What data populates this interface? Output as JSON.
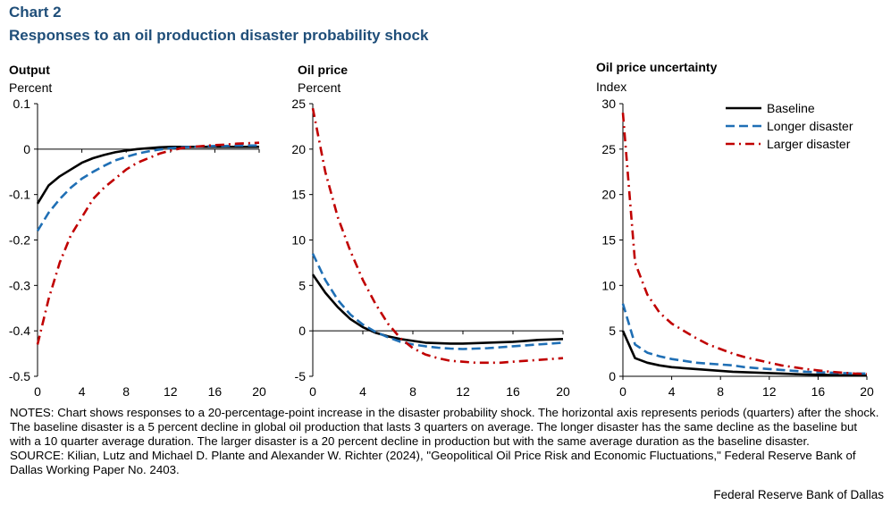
{
  "header": {
    "label": "Chart 2",
    "title": "Responses to an oil production disaster probability shock",
    "accent_color": "#1f4e79"
  },
  "chart_data": [
    {
      "type": "line",
      "title": "Output",
      "ylabel": "Percent",
      "xlabel": "",
      "xlim": [
        0,
        20
      ],
      "ylim": [
        -0.5,
        0.1
      ],
      "x_ticks": [
        0,
        4,
        8,
        12,
        16,
        20
      ],
      "y_ticks": [
        0.1,
        0,
        -0.1,
        -0.2,
        -0.3,
        -0.4,
        -0.5
      ],
      "y_tick_labels": [
        "0.1",
        "0",
        "-0.1",
        "-0.2",
        "-0.3",
        "-0.4",
        "-0.5"
      ],
      "x": [
        0,
        1,
        2,
        3,
        4,
        5,
        6,
        7,
        8,
        9,
        10,
        11,
        12,
        13,
        14,
        15,
        16,
        17,
        18,
        19,
        20
      ],
      "series": [
        {
          "name": "Baseline",
          "color": "#000000",
          "dash": "solid",
          "values": [
            -0.12,
            -0.08,
            -0.06,
            -0.045,
            -0.03,
            -0.02,
            -0.013,
            -0.007,
            -0.003,
            0.0,
            0.002,
            0.004,
            0.005,
            0.005,
            0.005,
            0.005,
            0.005,
            0.005,
            0.005,
            0.005,
            0.005
          ]
        },
        {
          "name": "Longer disaster",
          "color": "#1f6fb5",
          "dash": "dash",
          "values": [
            -0.18,
            -0.14,
            -0.11,
            -0.085,
            -0.065,
            -0.05,
            -0.037,
            -0.025,
            -0.017,
            -0.01,
            -0.005,
            -0.001,
            0.002,
            0.004,
            0.005,
            0.006,
            0.007,
            0.007,
            0.008,
            0.008,
            0.008
          ]
        },
        {
          "name": "Larger disaster",
          "color": "#c00000",
          "dash": "dashdot",
          "values": [
            -0.43,
            -0.33,
            -0.25,
            -0.19,
            -0.15,
            -0.11,
            -0.085,
            -0.065,
            -0.045,
            -0.03,
            -0.02,
            -0.01,
            -0.003,
            0.002,
            0.005,
            0.007,
            0.009,
            0.01,
            0.012,
            0.013,
            0.014
          ]
        }
      ]
    },
    {
      "type": "line",
      "title": "Oil price",
      "ylabel": "Percent",
      "xlabel": "",
      "xlim": [
        0,
        20
      ],
      "ylim": [
        -5,
        25
      ],
      "x_ticks": [
        0,
        4,
        8,
        12,
        16,
        20
      ],
      "y_ticks": [
        25,
        20,
        15,
        10,
        5,
        0,
        -5
      ],
      "y_tick_labels": [
        "25",
        "20",
        "15",
        "10",
        "5",
        "0",
        "-5"
      ],
      "x": [
        0,
        1,
        2,
        3,
        4,
        5,
        6,
        7,
        8,
        9,
        10,
        11,
        12,
        13,
        14,
        15,
        16,
        17,
        18,
        19,
        20
      ],
      "series": [
        {
          "name": "Baseline",
          "color": "#000000",
          "dash": "solid",
          "values": [
            6.2,
            4.2,
            2.6,
            1.3,
            0.4,
            -0.2,
            -0.6,
            -0.9,
            -1.1,
            -1.3,
            -1.35,
            -1.4,
            -1.4,
            -1.35,
            -1.3,
            -1.25,
            -1.2,
            -1.1,
            -1.0,
            -0.95,
            -0.9
          ]
        },
        {
          "name": "Longer disaster",
          "color": "#1f6fb5",
          "dash": "dash",
          "values": [
            8.5,
            5.6,
            3.4,
            1.8,
            0.7,
            -0.1,
            -0.7,
            -1.2,
            -1.5,
            -1.7,
            -1.85,
            -1.95,
            -2.0,
            -1.95,
            -1.9,
            -1.8,
            -1.7,
            -1.6,
            -1.5,
            -1.4,
            -1.3
          ]
        },
        {
          "name": "Larger disaster",
          "color": "#c00000",
          "dash": "dashdot",
          "values": [
            24.5,
            17.5,
            12.5,
            8.8,
            5.6,
            3.0,
            0.8,
            -0.8,
            -1.9,
            -2.6,
            -3.0,
            -3.3,
            -3.4,
            -3.5,
            -3.5,
            -3.5,
            -3.4,
            -3.3,
            -3.2,
            -3.1,
            -3.0
          ]
        }
      ]
    },
    {
      "type": "line",
      "title": "Oil price uncertainty",
      "ylabel": "Index",
      "xlabel": "",
      "xlim": [
        0,
        20
      ],
      "ylim": [
        0,
        30
      ],
      "x_ticks": [
        0,
        4,
        8,
        12,
        16,
        20
      ],
      "y_ticks": [
        30,
        25,
        20,
        15,
        10,
        5,
        0
      ],
      "y_tick_labels": [
        "30",
        "25",
        "20",
        "15",
        "10",
        "5",
        "0"
      ],
      "legend_position": "top-right",
      "x": [
        0,
        1,
        2,
        3,
        4,
        5,
        6,
        7,
        8,
        9,
        10,
        11,
        12,
        13,
        14,
        15,
        16,
        17,
        18,
        19,
        20
      ],
      "series": [
        {
          "name": "Baseline",
          "color": "#000000",
          "dash": "solid",
          "values": [
            5.0,
            2.0,
            1.5,
            1.2,
            1.0,
            0.9,
            0.8,
            0.7,
            0.6,
            0.5,
            0.45,
            0.4,
            0.35,
            0.3,
            0.25,
            0.2,
            0.18,
            0.15,
            0.12,
            0.1,
            0.1
          ]
        },
        {
          "name": "Longer disaster",
          "color": "#1f6fb5",
          "dash": "dash",
          "values": [
            8.0,
            3.5,
            2.6,
            2.2,
            1.9,
            1.7,
            1.5,
            1.4,
            1.3,
            1.2,
            1.0,
            0.9,
            0.8,
            0.7,
            0.6,
            0.5,
            0.45,
            0.4,
            0.35,
            0.3,
            0.3
          ]
        },
        {
          "name": "Larger disaster",
          "color": "#c00000",
          "dash": "dashdot",
          "values": [
            29.0,
            12.5,
            9.0,
            7.0,
            5.8,
            5.0,
            4.2,
            3.5,
            3.0,
            2.5,
            2.1,
            1.8,
            1.5,
            1.2,
            1.0,
            0.8,
            0.65,
            0.5,
            0.4,
            0.3,
            0.25
          ]
        }
      ]
    }
  ],
  "notes": {
    "notes_text": "NOTES: Chart shows responses to a 20-percentage-point increase in the disaster probability  shock. The horizontal axis represents periods (quarters) after the shock. The baseline disaster is a 5 percent decline in global oil production that lasts 3 quarters on average. The longer disaster has the same decline as the baseline but with a 10 quarter average duration.  The larger disaster is a 20 percent decline in production but with the same average duration as the baseline disaster.",
    "source_text": "SOURCE: Kilian, Lutz and Michael D. Plante and Alexander  W. Richter (2024), \"Geopolitical Oil Price Risk and Economic Fluctuations,\" Federal Reserve Bank of Dallas Working Paper No. 2403."
  },
  "footer": {
    "credit": "Federal Reserve Bank of Dallas"
  }
}
